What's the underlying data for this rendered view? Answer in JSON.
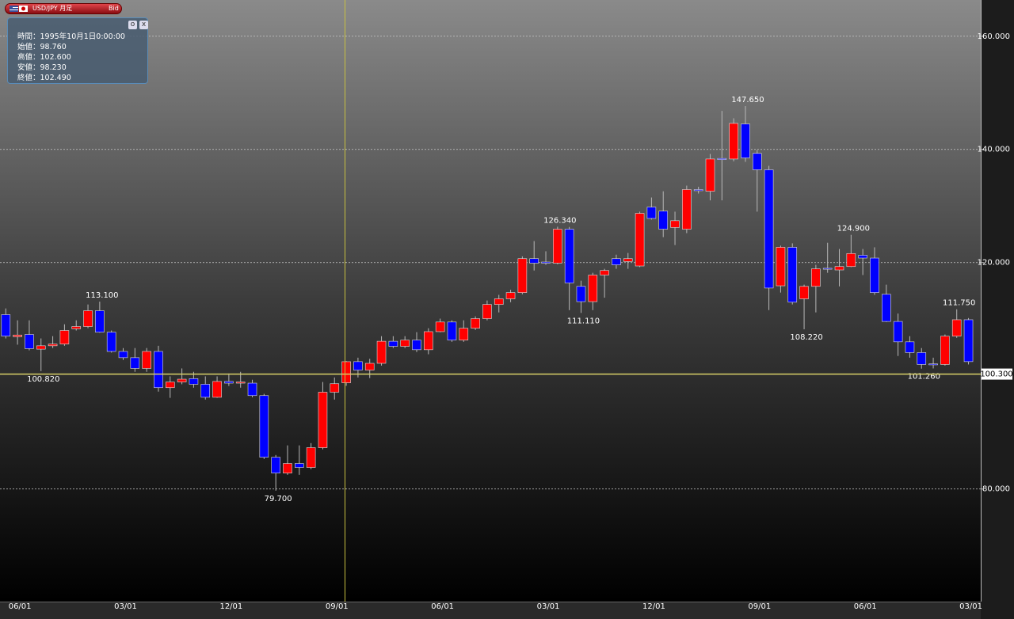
{
  "header": {
    "symbol": "USD/JPY 月足",
    "side": "Bid"
  },
  "tooltip": {
    "lines": [
      "時間：1995年10月1日0:00:00",
      "始値：98.760",
      "高値：102.600",
      "安値：98.230",
      "終値：102.490"
    ]
  },
  "chart_data": {
    "type": "candlestick",
    "categories": [
      null,
      "06/01",
      null,
      null,
      null,
      null,
      null,
      null,
      null,
      null,
      "03/01",
      null,
      null,
      null,
      null,
      null,
      null,
      null,
      null,
      "12/01",
      null,
      null,
      null,
      null,
      null,
      null,
      null,
      null,
      "09/01",
      null,
      null,
      null,
      null,
      null,
      null,
      null,
      null,
      "06/01",
      null,
      null,
      null,
      null,
      null,
      null,
      null,
      null,
      "03/01",
      null,
      null,
      null,
      null,
      null,
      null,
      null,
      null,
      "12/01",
      null,
      null,
      null,
      null,
      null,
      null,
      null,
      null,
      "09/01",
      null,
      null,
      null,
      null,
      null,
      null,
      null,
      null,
      "06/01",
      null,
      null,
      null,
      null,
      null,
      null,
      null,
      null,
      "03/01"
    ],
    "open": [
      110.8,
      106.9,
      107.3,
      104.7,
      105.3,
      105.6,
      108.3,
      108.7,
      111.5,
      107.7,
      104.3,
      103.2,
      101.3,
      104.3,
      97.9,
      98.9,
      99.5,
      98.5,
      96.2,
      99.0,
      98.7,
      98.7,
      96.5,
      85.6,
      82.8,
      84.5,
      83.8,
      87.3,
      97.1,
      98.76,
      102.5,
      101.0,
      102.2,
      106.1,
      105.2,
      106.3,
      104.6,
      107.8,
      109.5,
      106.3,
      108.4,
      110.1,
      112.6,
      113.6,
      114.7,
      120.7,
      120.1,
      119.9,
      125.9,
      115.8,
      113.1,
      117.8,
      120.7,
      120.2,
      119.4,
      129.8,
      129.1,
      126.2,
      125.9,
      132.9,
      132.6,
      138.4,
      138.3,
      144.5,
      139.3,
      136.4,
      115.9,
      122.7,
      113.6,
      115.8,
      119.0,
      118.7,
      119.3,
      121.3,
      120.8,
      114.4,
      109.6,
      106.0,
      104.1,
      102.1,
      102.0,
      107.0,
      109.9
    ],
    "high": [
      111.9,
      109.8,
      109.8,
      106.6,
      107.0,
      109.1,
      109.8,
      112.6,
      113.1,
      108.0,
      104.9,
      104.9,
      104.9,
      105.3,
      99.9,
      101.3,
      100.7,
      99.9,
      99.9,
      100.4,
      100.7,
      99.3,
      96.8,
      86.0,
      87.7,
      87.7,
      88.1,
      98.9,
      99.7,
      102.6,
      103.2,
      103.0,
      107.0,
      107.0,
      107.0,
      107.7,
      108.4,
      110.1,
      109.8,
      109.8,
      110.5,
      113.3,
      114.3,
      115.2,
      121.1,
      123.8,
      122.0,
      126.34,
      126.3,
      116.8,
      118.2,
      118.9,
      121.4,
      121.7,
      129.0,
      131.5,
      132.6,
      129.0,
      133.6,
      133.4,
      139.2,
      146.8,
      145.5,
      147.65,
      139.9,
      137.1,
      123.0,
      123.4,
      116.1,
      119.6,
      123.5,
      122.4,
      124.9,
      122.4,
      122.7,
      116.1,
      111.0,
      107.0,
      104.9,
      103.2,
      107.3,
      111.75,
      110.2
    ],
    "low": [
      106.6,
      105.5,
      104.5,
      100.82,
      104.9,
      105.3,
      108.0,
      108.4,
      107.6,
      104.1,
      102.8,
      100.7,
      100.7,
      97.2,
      96.1,
      98.5,
      97.9,
      95.8,
      96.1,
      98.2,
      97.9,
      96.2,
      85.3,
      79.7,
      82.5,
      82.5,
      83.5,
      87.0,
      95.8,
      98.23,
      99.7,
      99.6,
      101.8,
      104.9,
      104.9,
      104.2,
      103.8,
      107.7,
      106.0,
      106.0,
      108.1,
      109.8,
      111.2,
      113.0,
      114.4,
      118.6,
      119.6,
      119.7,
      111.6,
      111.11,
      111.6,
      113.8,
      118.9,
      118.9,
      119.2,
      127.6,
      124.5,
      123.1,
      125.2,
      132.2,
      131.0,
      131.0,
      137.9,
      137.8,
      129.0,
      111.6,
      114.7,
      112.6,
      108.22,
      111.2,
      118.2,
      115.8,
      119.2,
      117.8,
      114.3,
      109.5,
      103.5,
      103.2,
      101.26,
      101.3,
      101.8,
      106.7,
      102.0
    ],
    "close": [
      107.0,
      107.2,
      104.8,
      105.3,
      105.6,
      108.0,
      108.7,
      111.5,
      107.7,
      104.3,
      103.2,
      101.3,
      104.3,
      97.9,
      98.9,
      99.4,
      98.5,
      96.2,
      99.0,
      98.7,
      98.9,
      96.5,
      85.6,
      82.8,
      84.5,
      83.8,
      87.3,
      97.1,
      98.6,
      102.49,
      101.0,
      102.2,
      106.1,
      105.2,
      106.3,
      104.6,
      107.8,
      109.5,
      106.3,
      108.4,
      110.1,
      112.6,
      113.6,
      114.7,
      120.7,
      119.9,
      119.9,
      125.9,
      116.4,
      113.1,
      117.8,
      118.6,
      119.6,
      120.7,
      128.7,
      127.8,
      125.9,
      127.4,
      132.9,
      132.7,
      138.3,
      138.2,
      144.6,
      138.5,
      136.4,
      115.5,
      122.7,
      113.0,
      115.8,
      118.9,
      118.9,
      119.3,
      121.6,
      120.8,
      114.7,
      109.6,
      106.0,
      104.1,
      102.0,
      102.0,
      107.0,
      109.9,
      102.5
    ],
    "high_labels": [
      null,
      null,
      null,
      null,
      null,
      null,
      null,
      null,
      "113.100",
      null,
      null,
      null,
      null,
      null,
      null,
      null,
      null,
      null,
      null,
      null,
      null,
      null,
      null,
      null,
      null,
      null,
      null,
      null,
      null,
      null,
      null,
      null,
      null,
      null,
      null,
      null,
      null,
      null,
      null,
      null,
      null,
      null,
      null,
      null,
      null,
      null,
      null,
      "126.340",
      null,
      null,
      null,
      null,
      null,
      null,
      null,
      null,
      null,
      null,
      null,
      null,
      null,
      null,
      null,
      "147.650",
      null,
      null,
      null,
      null,
      null,
      null,
      null,
      null,
      "124.900",
      null,
      null,
      null,
      null,
      null,
      null,
      null,
      null,
      "111.750",
      null
    ],
    "low_labels": [
      null,
      null,
      null,
      "100.820",
      null,
      null,
      null,
      null,
      null,
      null,
      null,
      null,
      null,
      null,
      null,
      null,
      null,
      null,
      null,
      null,
      null,
      null,
      null,
      "79.700",
      null,
      null,
      null,
      null,
      null,
      null,
      null,
      null,
      null,
      null,
      null,
      null,
      null,
      null,
      null,
      null,
      null,
      null,
      null,
      null,
      null,
      null,
      null,
      null,
      null,
      "111.110",
      null,
      null,
      null,
      null,
      null,
      null,
      null,
      null,
      null,
      null,
      null,
      null,
      null,
      null,
      null,
      null,
      null,
      null,
      "108.220",
      null,
      null,
      null,
      null,
      null,
      null,
      null,
      null,
      null,
      "101.260",
      null,
      null,
      null,
      null
    ],
    "up_color": "#ff0000",
    "down_color": "#0000ff",
    "ylim": [
      60.1,
      166.4
    ],
    "yticks": [
      {
        "value": 80,
        "label": "80.000"
      },
      {
        "value": 120,
        "label": "120.000"
      },
      {
        "value": 140,
        "label": "140.000"
      },
      {
        "value": 160,
        "label": "160.000"
      }
    ],
    "grid": true,
    "current_price": {
      "value": 100.3,
      "label": "100.300"
    }
  }
}
